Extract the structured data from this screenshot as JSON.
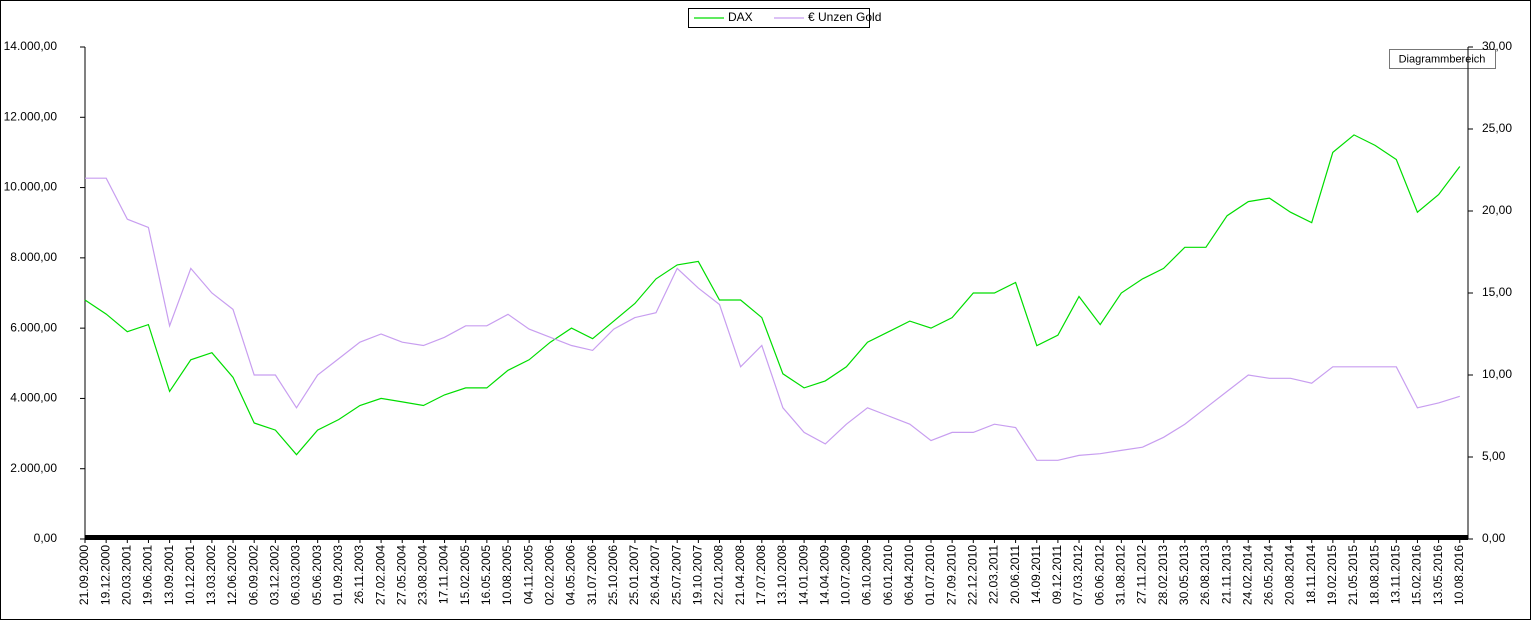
{
  "chart_data": {
    "type": "line",
    "tooltip": "Diagrammbereich",
    "categories": [
      "21.09.2000",
      "19.12.2000",
      "20.03.2001",
      "19.06.2001",
      "13.09.2001",
      "10.12.2001",
      "13.03.2002",
      "12.06.2002",
      "06.09.2002",
      "03.12.2002",
      "06.03.2003",
      "05.06.2003",
      "01.09.2003",
      "26.11.2003",
      "27.02.2004",
      "27.05.2004",
      "23.08.2004",
      "17.11.2004",
      "15.02.2005",
      "16.05.2005",
      "10.08.2005",
      "04.11.2005",
      "02.02.2006",
      "04.05.2006",
      "31.07.2006",
      "25.10.2006",
      "25.01.2007",
      "26.04.2007",
      "25.07.2007",
      "19.10.2007",
      "22.01.2008",
      "21.04.2008",
      "17.07.2008",
      "13.10.2008",
      "14.01.2009",
      "14.04.2009",
      "10.07.2009",
      "06.10.2009",
      "06.01.2010",
      "06.04.2010",
      "01.07.2010",
      "27.09.2010",
      "22.12.2010",
      "22.03.2011",
      "20.06.2011",
      "14.09.2011",
      "09.12.2011",
      "07.03.2012",
      "06.06.2012",
      "31.08.2012",
      "27.11.2012",
      "28.02.2013",
      "30.05.2013",
      "26.08.2013",
      "21.11.2013",
      "24.02.2014",
      "26.05.2014",
      "20.08.2014",
      "18.11.2014",
      "19.02.2015",
      "21.05.2015",
      "18.08.2015",
      "13.11.2015",
      "15.02.2016",
      "13.05.2016",
      "10.08.2016"
    ],
    "series": [
      {
        "name": "DAX",
        "color": "#00dd00",
        "values": [
          6800,
          6400,
          5900,
          6100,
          4200,
          5100,
          5300,
          4600,
          3300,
          3100,
          2400,
          3100,
          3400,
          3800,
          4000,
          3900,
          3800,
          4100,
          4300,
          4300,
          4800,
          5100,
          5600,
          6000,
          5700,
          6200,
          6700,
          7400,
          7800,
          7900,
          6800,
          6800,
          6300,
          4700,
          4300,
          4500,
          4900,
          5600,
          5900,
          6200,
          6000,
          6300,
          7000,
          7000,
          7300,
          5500,
          5800,
          6900,
          6100,
          7000,
          7400,
          7700,
          8300,
          8300,
          9200,
          9600,
          9700,
          9300,
          9000,
          11000,
          11500,
          11200,
          10800,
          9300,
          9800,
          10600
        ]
      },
      {
        "name": "€ Unzen Gold",
        "color": "#c89ef0",
        "axis": "y2",
        "values": [
          22,
          22,
          19.5,
          19,
          13,
          16.5,
          15,
          14,
          10,
          10,
          8,
          10,
          11,
          12,
          12.5,
          12,
          11.8,
          12.3,
          13,
          13,
          13.7,
          12.8,
          12.3,
          11.8,
          11.5,
          12.8,
          13.5,
          13.8,
          16.5,
          15.3,
          14.3,
          10.5,
          11.8,
          8,
          6.5,
          5.8,
          7,
          8,
          7.5,
          7,
          6,
          6.5,
          6.5,
          7,
          6.8,
          4.8,
          4.8,
          5.1,
          5.2,
          5.4,
          5.6,
          6.2,
          7,
          8,
          9,
          10,
          9.8,
          9.8,
          9.5,
          10.5,
          10.5,
          10.5,
          10.5,
          8,
          8.3,
          8.7
        ]
      }
    ],
    "ylim": [
      0,
      14000
    ],
    "yticks": [
      {
        "value": 0,
        "label": "0,00"
      },
      {
        "value": 2000,
        "label": "2.000,00"
      },
      {
        "value": 4000,
        "label": "4.000,00"
      },
      {
        "value": 6000,
        "label": "6.000,00"
      },
      {
        "value": 8000,
        "label": "8.000,00"
      },
      {
        "value": 10000,
        "label": "10.000,00"
      },
      {
        "value": 12000,
        "label": "12.000,00"
      },
      {
        "value": 14000,
        "label": "14.000,00"
      }
    ],
    "y2lim": [
      0,
      30
    ],
    "y2ticks": [
      {
        "value": 0,
        "label": "0,00"
      },
      {
        "value": 5,
        "label": "5,00"
      },
      {
        "value": 10,
        "label": "10,00"
      },
      {
        "value": 15,
        "label": "15,00"
      },
      {
        "value": 20,
        "label": "20,00"
      },
      {
        "value": 25,
        "label": "25,00"
      },
      {
        "value": 30,
        "label": "30,00"
      }
    ]
  }
}
